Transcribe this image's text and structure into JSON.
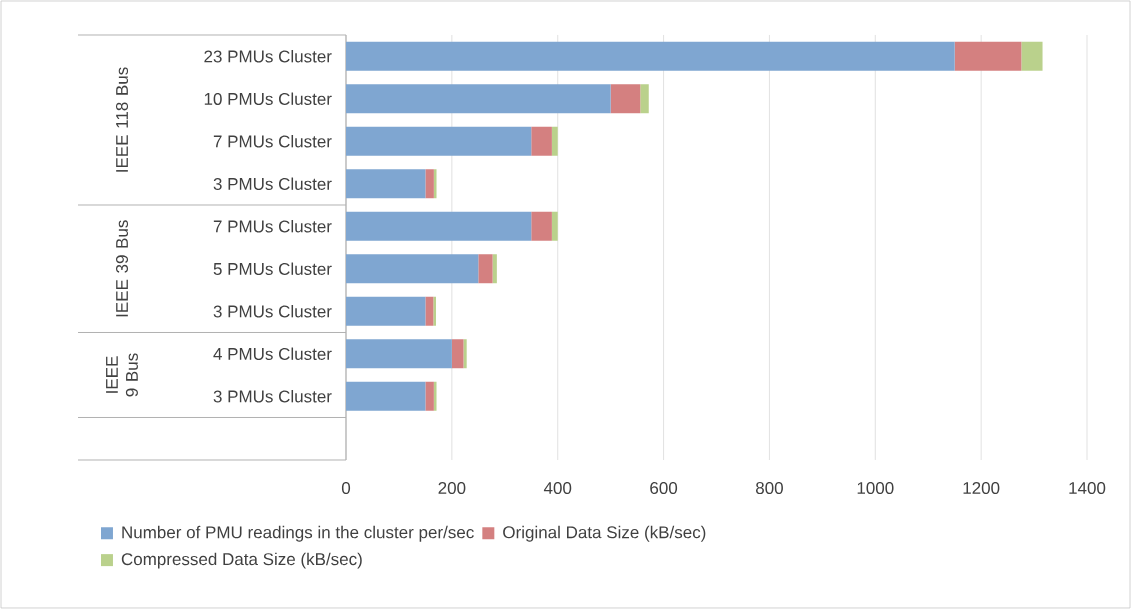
{
  "chart_data": {
    "type": "bar",
    "orientation": "horizontal",
    "stacked": true,
    "categories": [
      "23 PMUs Cluster",
      "10 PMUs Cluster",
      "7 PMUs Cluster",
      "3 PMUs Cluster",
      "7 PMUs Cluster",
      "5 PMUs Cluster",
      "3 PMUs Cluster",
      "4 PMUs Cluster",
      "3 PMUs Cluster",
      null
    ],
    "series": [
      {
        "name": "Number of PMU readings in the cluster per/sec",
        "color": "#7fa6d1",
        "values": [
          1150,
          500,
          350,
          150,
          350,
          250,
          150,
          200,
          150,
          null
        ]
      },
      {
        "name": "Original Data Size (kB/sec)",
        "color": "#d48080",
        "values": [
          126,
          56,
          39,
          16,
          39,
          27,
          15,
          22,
          16,
          null
        ]
      },
      {
        "name": "Compressed Data Size (kB/sec)",
        "color": "#bad18c",
        "values": [
          40,
          16,
          11,
          5,
          11,
          8,
          5,
          6,
          5,
          null
        ]
      }
    ],
    "annotations": [
      "IEEE 118 Bus",
      "IEEE 39 Bus",
      "IEEE 9 Bus"
    ],
    "xlim": [
      0,
      1400
    ],
    "xticks": [
      0,
      200,
      400,
      600,
      800,
      1000,
      1200,
      1400
    ],
    "grid": "x",
    "legend": "bottom"
  }
}
